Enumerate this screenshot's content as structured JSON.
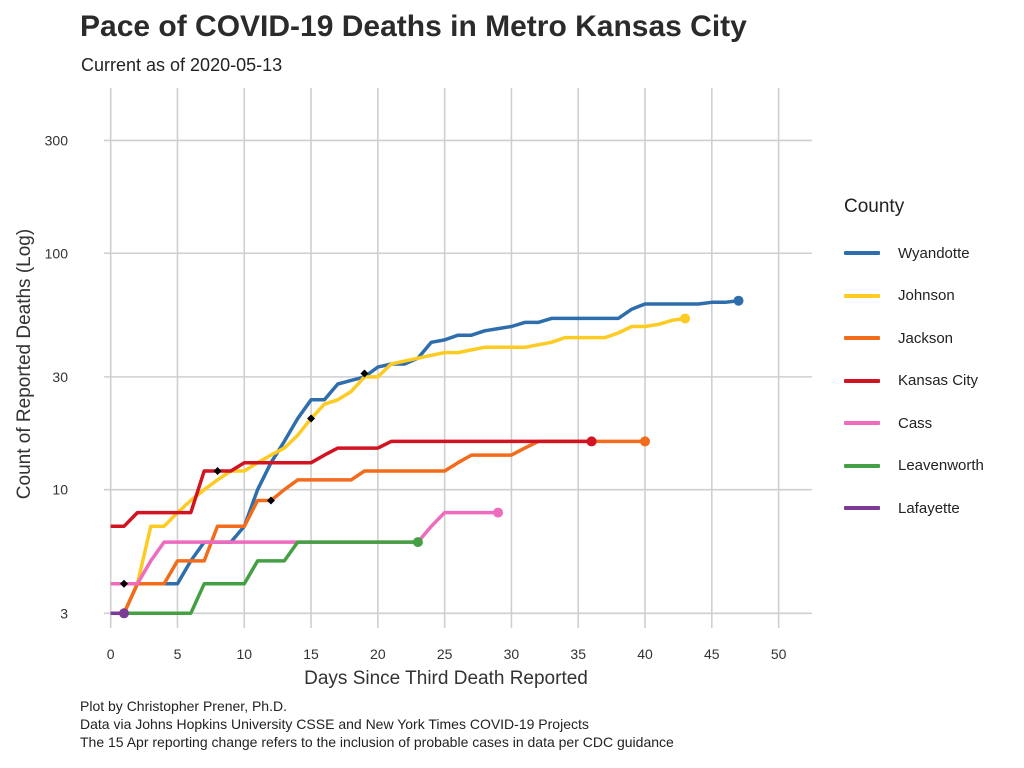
{
  "title": "Pace of COVID-19 Deaths in Metro Kansas City",
  "subtitle": "Current as of 2020-05-13",
  "caption": [
    "Plot by Christopher Prener, Ph.D.",
    "Data via Johns Hopkins University CSSE and New York Times COVID-19 Projects",
    "The 15 Apr reporting change refers to the inclusion of probable cases in data per CDC guidance"
  ],
  "legend_title": "County",
  "chart_data": {
    "type": "line",
    "title": "Pace of COVID-19 Deaths in Metro Kansas City",
    "subtitle": "Current as of 2020-05-13",
    "xlabel": "Days Since Third Death Reported",
    "ylabel": "Count of Reported Deaths (Log)",
    "xlim": [
      -0.5,
      52.5
    ],
    "ylim": [
      2.6,
      500
    ],
    "y_scale": "log",
    "xticks": [
      0,
      5,
      10,
      15,
      20,
      25,
      30,
      35,
      40,
      45,
      50
    ],
    "yticks": [
      3,
      10,
      30,
      100,
      300
    ],
    "grid": true,
    "legend_position": "right",
    "legend_title": "County",
    "series": [
      {
        "name": "Wyandotte",
        "color": "#2f6eac",
        "x": [
          0,
          1,
          2,
          3,
          4,
          5,
          6,
          7,
          8,
          9,
          10,
          11,
          12,
          13,
          14,
          15,
          16,
          17,
          18,
          19,
          20,
          21,
          22,
          23,
          24,
          25,
          26,
          27,
          28,
          29,
          30,
          31,
          32,
          33,
          34,
          35,
          36,
          37,
          38,
          39,
          40,
          41,
          42,
          43,
          44,
          45,
          46,
          47
        ],
        "y": [
          3,
          3,
          4,
          4,
          4,
          4,
          5,
          6,
          6,
          6,
          7,
          10,
          13,
          16,
          20,
          24,
          24,
          28,
          29,
          30,
          33,
          34,
          34,
          36,
          42,
          43,
          45,
          45,
          47,
          48,
          49,
          51,
          51,
          53,
          53,
          53,
          53,
          53,
          53,
          58,
          61,
          61,
          61,
          61,
          61,
          62,
          62,
          63
        ]
      },
      {
        "name": "Johnson",
        "color": "#fdcb22",
        "x": [
          1,
          2,
          3,
          4,
          5,
          6,
          7,
          8,
          9,
          10,
          11,
          12,
          13,
          14,
          15,
          16,
          17,
          18,
          19,
          20,
          21,
          22,
          23,
          24,
          25,
          26,
          27,
          28,
          29,
          30,
          31,
          32,
          33,
          34,
          35,
          36,
          37,
          38,
          39,
          40,
          41,
          42,
          43
        ],
        "y": [
          3,
          4,
          7,
          7,
          8,
          9,
          10,
          11,
          12,
          12,
          13,
          14,
          15,
          17,
          20,
          23,
          24,
          26,
          30,
          30,
          34,
          35,
          36,
          37,
          38,
          38,
          39,
          40,
          40,
          40,
          40,
          41,
          42,
          44,
          44,
          44,
          44,
          46,
          49,
          49,
          50,
          52,
          53
        ]
      },
      {
        "name": "Jackson",
        "color": "#f26c1b",
        "x": [
          1,
          2,
          3,
          4,
          5,
          6,
          7,
          8,
          9,
          10,
          11,
          12,
          13,
          14,
          15,
          16,
          17,
          18,
          19,
          20,
          21,
          22,
          23,
          24,
          25,
          26,
          27,
          28,
          29,
          30,
          31,
          32,
          33,
          34,
          35,
          36,
          37,
          38,
          39,
          40
        ],
        "y": [
          3,
          4,
          4,
          4,
          5,
          5,
          5,
          7,
          7,
          7,
          9,
          9,
          10,
          11,
          11,
          11,
          11,
          11,
          12,
          12,
          12,
          12,
          12,
          12,
          12,
          13,
          14,
          14,
          14,
          14,
          15,
          16,
          16,
          16,
          16,
          16,
          16,
          16,
          16,
          16
        ]
      },
      {
        "name": "Kansas City",
        "color": "#d21422",
        "x": [
          0,
          1,
          2,
          3,
          4,
          5,
          6,
          7,
          8,
          9,
          10,
          11,
          12,
          13,
          14,
          15,
          16,
          17,
          18,
          19,
          20,
          21,
          22,
          23,
          24,
          25,
          26,
          27,
          28,
          29,
          30,
          31,
          32,
          33,
          34,
          35,
          36
        ],
        "y": [
          7,
          7,
          8,
          8,
          8,
          8,
          8,
          12,
          12,
          12,
          13,
          13,
          13,
          13,
          13,
          13,
          14,
          15,
          15,
          15,
          15,
          16,
          16,
          16,
          16,
          16,
          16,
          16,
          16,
          16,
          16,
          16,
          16,
          16,
          16,
          16,
          16
        ]
      },
      {
        "name": "Cass",
        "color": "#ee6bbe",
        "x": [
          0,
          1,
          2,
          3,
          4,
          5,
          6,
          7,
          8,
          9,
          10,
          11,
          12,
          13,
          14,
          15,
          16,
          17,
          18,
          19,
          20,
          21,
          22,
          23,
          24,
          25,
          26,
          27,
          28,
          29
        ],
        "y": [
          4,
          4,
          4,
          5,
          6,
          6,
          6,
          6,
          6,
          6,
          6,
          6,
          6,
          6,
          6,
          6,
          6,
          6,
          6,
          6,
          6,
          6,
          6,
          6,
          7,
          8,
          8,
          8,
          8,
          8
        ]
      },
      {
        "name": "Leavenworth",
        "color": "#44a043",
        "x": [
          1,
          2,
          3,
          4,
          5,
          6,
          7,
          8,
          9,
          10,
          11,
          12,
          13,
          14,
          15,
          16,
          17,
          18,
          19,
          20,
          21,
          22,
          23
        ],
        "y": [
          3,
          3,
          3,
          3,
          3,
          3,
          4,
          4,
          4,
          4,
          5,
          5,
          5,
          6,
          6,
          6,
          6,
          6,
          6,
          6,
          6,
          6,
          6
        ]
      },
      {
        "name": "Lafayette",
        "color": "#7c3c96",
        "x": [
          0,
          1
        ],
        "y": [
          3,
          3
        ]
      }
    ],
    "annotations": {
      "marker": "diamond",
      "points": [
        [
          1,
          4
        ],
        [
          8,
          12
        ],
        [
          12,
          9
        ],
        [
          15,
          20
        ],
        [
          19,
          31
        ]
      ]
    }
  }
}
